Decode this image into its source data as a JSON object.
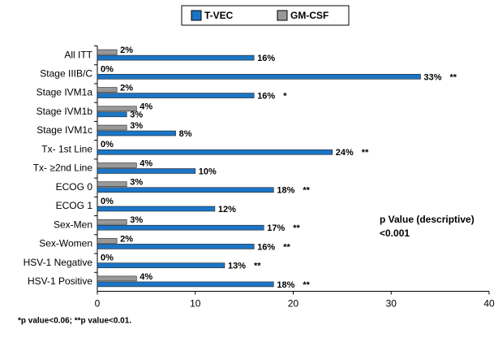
{
  "chart_data": {
    "type": "bar",
    "orientation": "horizontal",
    "categories": [
      "All ITT",
      "Stage IIIB/C",
      "Stage IVM1a",
      "Stage IVM1b",
      "Stage IVM1c",
      "Tx- 1st Line",
      "Tx- ≥2nd Line",
      "ECOG 0",
      "ECOG 1",
      "Sex-Men",
      "Sex-Women",
      "HSV-1 Negative",
      "HSV-1 Positive"
    ],
    "series": [
      {
        "name": "T-VEC",
        "color": "#1b75c4",
        "values": [
          16,
          33,
          16,
          3,
          8,
          24,
          10,
          18,
          12,
          17,
          16,
          13,
          18
        ],
        "value_labels": [
          "16%",
          "33%",
          "16%",
          "3%",
          "8%",
          "24%",
          "10%",
          "18%",
          "12%",
          "17%",
          "16%",
          "13%",
          "18%"
        ],
        "significance": [
          null,
          "**",
          "*",
          null,
          null,
          "**",
          null,
          "**",
          null,
          "**",
          "**",
          "**",
          "**"
        ]
      },
      {
        "name": "GM-CSF",
        "color": "#999999",
        "values": [
          2,
          0,
          2,
          4,
          3,
          0,
          4,
          3,
          0,
          3,
          2,
          0,
          4
        ],
        "value_labels": [
          "2%",
          "0%",
          "2%",
          "4%",
          "3%",
          "0%",
          "4%",
          "3%",
          "0%",
          "3%",
          "2%",
          "0%",
          "4%"
        ]
      }
    ],
    "xlim": [
      0,
      40
    ],
    "xticks": [
      0,
      10,
      20,
      30,
      40
    ],
    "annotation": [
      "p Value (descriptive)",
      "<0.001"
    ],
    "footnote": "*p value<0.06; **p value<0.01."
  }
}
